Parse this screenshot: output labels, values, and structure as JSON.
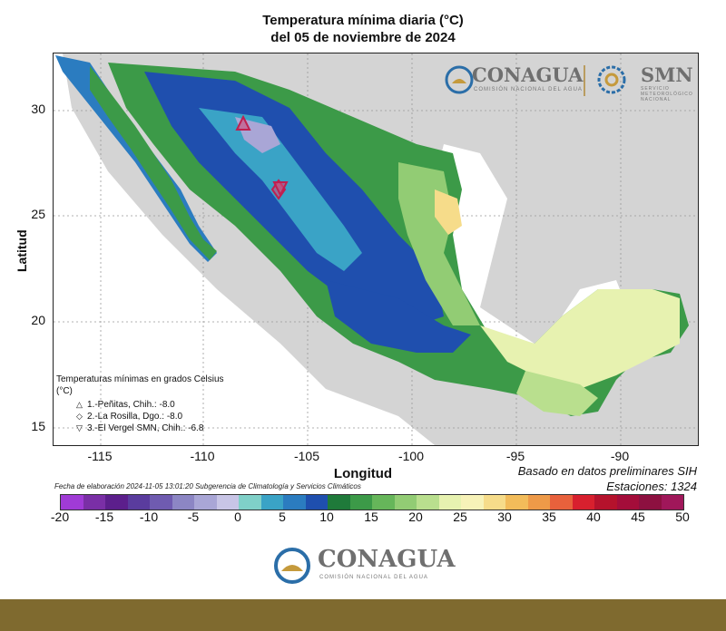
{
  "title": {
    "line1": "Temperatura mínima diaria (°C)",
    "line2": "del 05 de noviembre de 2024"
  },
  "map": {
    "xlabel": "Longitud",
    "ylabel": "Latitud",
    "xticks": [
      "-115",
      "-110",
      "-105",
      "-100",
      "-95",
      "-90"
    ],
    "yticks": [
      "30",
      "25",
      "20",
      "15"
    ],
    "grid": true,
    "background_color": "#d4d4d4"
  },
  "legend_box": {
    "heading": "Temperaturas mínimas en grados Celsius (°C)",
    "stations": [
      {
        "symbol": "△",
        "label": "1.-Peñitas, Chih.: -8.0"
      },
      {
        "symbol": "◇",
        "label": "2.-La Rosilla, Dgo.: -8.0"
      },
      {
        "symbol": "▽",
        "label": "3.-El Vergel SMN, Chih.: -6.8"
      }
    ]
  },
  "footer": {
    "elaboracion": "Fecha de elaboración 2024-11-05 13:01:20 Subgerencia de Climatología y Servicios Climáticos",
    "basado": "Basado en datos preliminares SIH",
    "estaciones": "Estaciones:  1324"
  },
  "colorbar": {
    "ticks": [
      "-20",
      "-15",
      "-10",
      "-5",
      "0",
      "5",
      "10",
      "15",
      "20",
      "25",
      "30",
      "35",
      "40",
      "45",
      "50"
    ],
    "colors": [
      "#a03bd6",
      "#7a2fa6",
      "#5c1f8c",
      "#5a3c9e",
      "#6f5bb0",
      "#8c86c4",
      "#a9a6d6",
      "#c8c5e6",
      "#7fd0c8",
      "#3aa3c6",
      "#2b7cc0",
      "#1f4fae",
      "#1f7a3a",
      "#3c9a48",
      "#66b65a",
      "#92cc74",
      "#b9df8e",
      "#e7f2b0",
      "#f7f2b8",
      "#f6dc8a",
      "#f2bc5a",
      "#ee9a48",
      "#e8613c",
      "#d8202e",
      "#b5122c",
      "#a40d3a",
      "#8d1040",
      "#a0175a"
    ]
  },
  "logos": {
    "conagua_name": "CONAGUA",
    "conagua_sub": "COMISIÓN NACIONAL DEL AGUA",
    "smn_name": "SMN",
    "smn_sub1": "SERVICIO",
    "smn_sub2": "METEOROLÓGICO",
    "smn_sub3": "NACIONAL"
  }
}
